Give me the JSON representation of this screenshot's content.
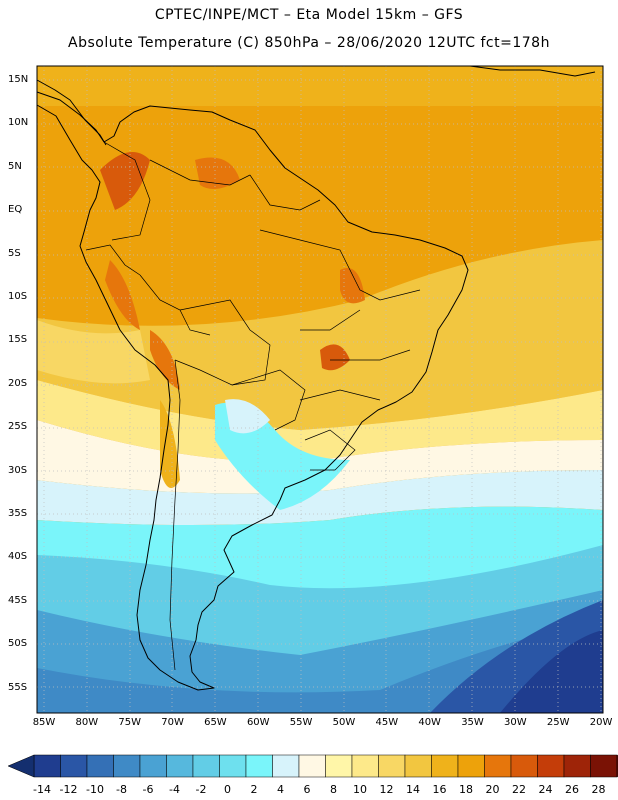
{
  "header": {
    "line1": "CPTEC/INPE/MCT –  Eta Model 15km – GFS",
    "line2": "Absolute Temperature (C) 850hPa – 28/06/2020 12UTC fct=178h"
  },
  "map": {
    "lat_labels": [
      "15N",
      "10N",
      "5N",
      "EQ",
      "5S",
      "10S",
      "15S",
      "20S",
      "25S",
      "30S",
      "35S",
      "40S",
      "45S",
      "50S",
      "55S"
    ],
    "lon_labels": [
      "85W",
      "80W",
      "75W",
      "70W",
      "65W",
      "60W",
      "55W",
      "50W",
      "45W",
      "40W",
      "35W",
      "30W",
      "25W",
      "20W"
    ]
  },
  "colorbar": {
    "labels": [
      "-14",
      "-12",
      "-10",
      "-8",
      "-6",
      "-4",
      "-2",
      "0",
      "2",
      "4",
      "6",
      "8",
      "10",
      "12",
      "14",
      "16",
      "18",
      "20",
      "22",
      "24",
      "26",
      "28"
    ],
    "colors": [
      "#1f3d8f",
      "#2a56a6",
      "#3470b6",
      "#3f8ac6",
      "#4aa2d3",
      "#56b8dd",
      "#62cde6",
      "#6ee0ee",
      "#7af5fa",
      "#d7f3fb",
      "#fff8e4",
      "#fff6a8",
      "#fde98a",
      "#f8d764",
      "#f2c640",
      "#efb21b",
      "#eda20b",
      "#e6760c",
      "#d85a0b",
      "#c43d09",
      "#9e2408",
      "#7a1205"
    ],
    "left_arrow_color": "#142f6f",
    "right_arrow_color": "#5a0804"
  }
}
